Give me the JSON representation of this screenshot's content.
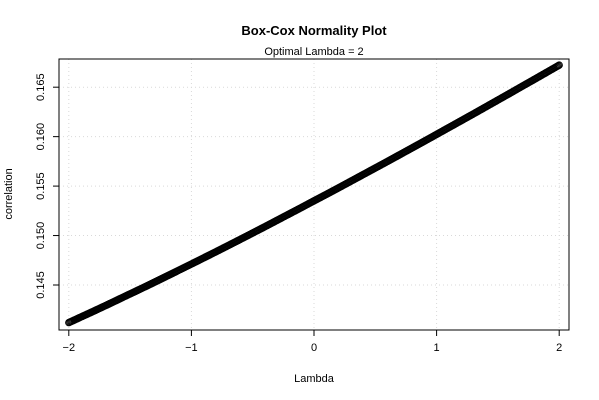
{
  "chart_data": {
    "type": "scatter",
    "title": "Box-Cox Normality Plot",
    "subtitle": "Optimal Lambda = 2",
    "xlabel": "Lambda",
    "ylabel": "correlation",
    "xlim": [
      -2.08,
      2.08
    ],
    "ylim": [
      0.14045,
      0.16785
    ],
    "x_ticks": [
      -2,
      -1,
      0,
      1,
      2
    ],
    "x_tick_labels": [
      "−2",
      "−1",
      "0",
      "1",
      "2"
    ],
    "y_ticks": [
      0.145,
      0.15,
      0.155,
      0.16,
      0.165
    ],
    "y_tick_labels": [
      "0.145",
      "0.150",
      "0.155",
      "0.160",
      "0.165"
    ],
    "grid": true,
    "series": [
      {
        "x": [
          -2.0,
          -1.9,
          -1.8,
          -1.7,
          -1.6,
          -1.5,
          -1.4,
          -1.3,
          -1.2,
          -1.1,
          -1.0,
          -0.9,
          -0.8,
          -0.7,
          -0.6,
          -0.5,
          -0.4,
          -0.3,
          -0.2,
          -0.1,
          0.0,
          0.1,
          0.2,
          0.3,
          0.4,
          0.5,
          0.6,
          0.7,
          0.8,
          0.9,
          1.0,
          1.1,
          1.2,
          1.3,
          1.4,
          1.5,
          1.6,
          1.7,
          1.8,
          1.9,
          2.0
        ],
        "y": [
          0.1412,
          0.14177,
          0.14234,
          0.14292,
          0.14351,
          0.1441,
          0.14469,
          0.14529,
          0.1459,
          0.14651,
          0.14712,
          0.14774,
          0.14836,
          0.14899,
          0.14962,
          0.15026,
          0.1509,
          0.15155,
          0.1522,
          0.15285,
          0.15351,
          0.15416,
          0.15482,
          0.15549,
          0.15616,
          0.15683,
          0.1575,
          0.15818,
          0.15886,
          0.15954,
          0.16023,
          0.16092,
          0.16161,
          0.1623,
          0.163,
          0.1637,
          0.1644,
          0.16511,
          0.16581,
          0.16652,
          0.16723
        ]
      }
    ]
  }
}
